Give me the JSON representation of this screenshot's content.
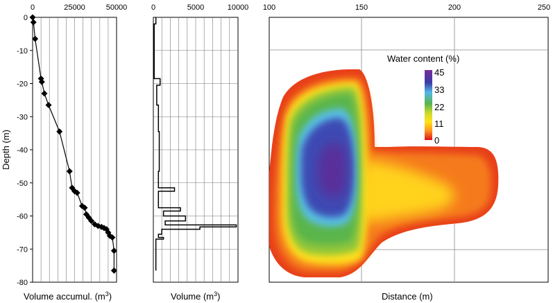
{
  "chart_data": [
    {
      "type": "line",
      "xlabel": "Volume accumul. (m",
      "xlabel_sup": "3",
      "xlabel_close": ")",
      "ylabel": "Depth (m)",
      "xlim": [
        0,
        50000
      ],
      "ylim": [
        -80,
        0
      ],
      "xticks": [
        "0",
        "25000",
        "50000"
      ],
      "yticks": [
        "0",
        "-10",
        "-20",
        "-30",
        "-40",
        "-50",
        "-60",
        "-70",
        "-80"
      ],
      "grid": true,
      "markers": "diamond",
      "points": [
        [
          0,
          0
        ],
        [
          500,
          -1.5
        ],
        [
          1500,
          -6.5
        ],
        [
          5000,
          -18.5
        ],
        [
          5500,
          -19.5
        ],
        [
          7000,
          -23
        ],
        [
          9500,
          -26.5
        ],
        [
          16000,
          -34.5
        ],
        [
          22000,
          -46.5
        ],
        [
          23500,
          -51.5
        ],
        [
          25000,
          -52.5
        ],
        [
          26500,
          -53
        ],
        [
          29500,
          -57
        ],
        [
          31000,
          -57.5
        ],
        [
          32000,
          -59.5
        ],
        [
          33500,
          -60.5
        ],
        [
          35000,
          -61.5
        ],
        [
          37000,
          -62.5
        ],
        [
          39000,
          -63
        ],
        [
          41000,
          -63.3
        ],
        [
          42500,
          -63.6
        ],
        [
          44000,
          -64
        ],
        [
          45000,
          -65
        ],
        [
          46000,
          -66
        ],
        [
          47500,
          -66.5
        ],
        [
          48500,
          -70.5
        ],
        [
          48500,
          -76.5
        ]
      ]
    },
    {
      "type": "line",
      "xlabel": "Volume (m",
      "xlabel_sup": "3",
      "xlabel_close": ")",
      "xlim": [
        0,
        10000
      ],
      "ylim": [
        -80,
        0
      ],
      "xticks": [
        "0",
        "5000",
        "10000"
      ],
      "grid": true,
      "step_points": [
        [
          300,
          0
        ],
        [
          300,
          -2
        ],
        [
          100,
          -2
        ],
        [
          100,
          -18.5
        ],
        [
          800,
          -18.5
        ],
        [
          800,
          -20.5
        ],
        [
          400,
          -20.5
        ],
        [
          400,
          -26.5
        ],
        [
          600,
          -26.5
        ],
        [
          600,
          -34.5
        ],
        [
          700,
          -34.5
        ],
        [
          700,
          -46.5
        ],
        [
          600,
          -46.5
        ],
        [
          600,
          -51.5
        ],
        [
          2500,
          -51.5
        ],
        [
          2500,
          -52.5
        ],
        [
          600,
          -52.5
        ],
        [
          600,
          -57.5
        ],
        [
          3200,
          -57.5
        ],
        [
          3200,
          -58.5
        ],
        [
          1200,
          -58.5
        ],
        [
          1200,
          -60
        ],
        [
          3800,
          -60
        ],
        [
          3800,
          -61.5
        ],
        [
          1400,
          -61.5
        ],
        [
          1400,
          -62.7
        ],
        [
          9800,
          -62.7
        ],
        [
          9800,
          -63.3
        ],
        [
          5500,
          -63.3
        ],
        [
          5500,
          -64
        ],
        [
          1000,
          -64
        ],
        [
          1000,
          -65.5
        ],
        [
          600,
          -65.5
        ],
        [
          600,
          -66.5
        ],
        [
          1200,
          -66.5
        ],
        [
          1200,
          -67
        ],
        [
          300,
          -67
        ],
        [
          300,
          -76.5
        ]
      ]
    },
    {
      "type": "heatmap",
      "xlabel": "Distance (m)",
      "xlim": [
        100,
        250
      ],
      "xticks": [
        "100",
        "150",
        "200",
        "250"
      ],
      "grid": true,
      "colorbar": {
        "title": "Water content (%)",
        "ticks": [
          "45",
          "33",
          "22",
          "11",
          "0"
        ],
        "colors": [
          "#6a2a9a",
          "#3b3aa8",
          "#57b9e6",
          "#5db65a",
          "#c9d92c",
          "#ffe21a",
          "#ffb020",
          "#f06018",
          "#e0101a"
        ]
      }
    }
  ]
}
